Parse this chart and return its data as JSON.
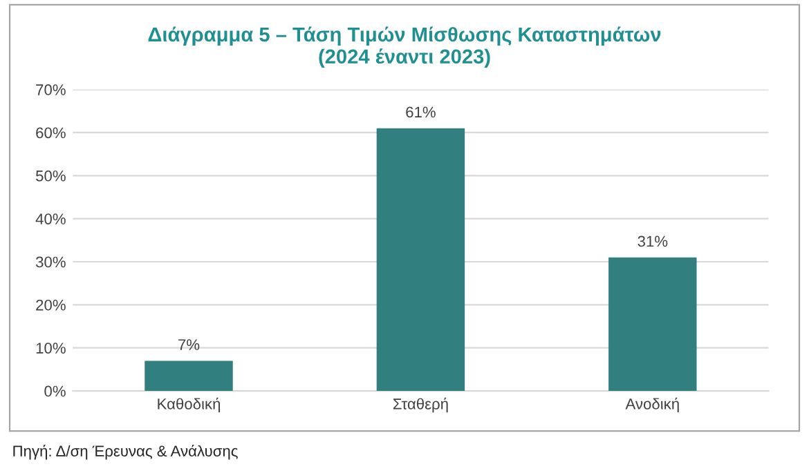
{
  "chart_data": {
    "type": "bar",
    "title": "Διάγραμμα 5 – Τάση Τιμών Μίσθωσης Καταστημάτων\n(2024 έναντι 2023)",
    "categories": [
      "Καθοδική",
      "Σταθερή",
      "Ανοδική"
    ],
    "values": [
      7,
      61,
      31
    ],
    "value_labels": [
      "7%",
      "61%",
      "31%"
    ],
    "color": "#31807f",
    "ylim": [
      0,
      70
    ],
    "yticks": [
      {
        "value": 0,
        "label": "0%"
      },
      {
        "value": 10,
        "label": "10%"
      },
      {
        "value": 20,
        "label": "20%"
      },
      {
        "value": 30,
        "label": "30%"
      },
      {
        "value": 40,
        "label": "40%"
      },
      {
        "value": 50,
        "label": "50%"
      },
      {
        "value": 60,
        "label": "60%"
      },
      {
        "value": 70,
        "label": "70%"
      }
    ],
    "grid": "y",
    "annotations": [
      "Πηγή: Δ/ση Έρευνας & Ανάλυσης"
    ]
  }
}
